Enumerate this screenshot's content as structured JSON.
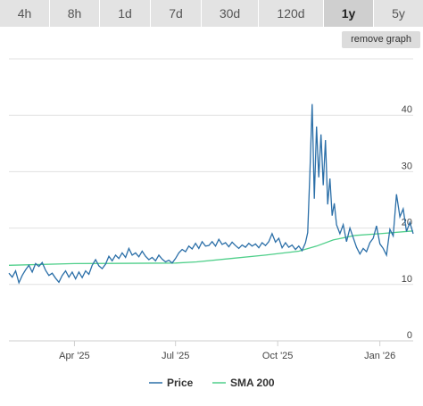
{
  "range_tabs": [
    {
      "label": "4h",
      "active": false
    },
    {
      "label": "8h",
      "active": false
    },
    {
      "label": "1d",
      "active": false
    },
    {
      "label": "7d",
      "active": false
    },
    {
      "label": "30d",
      "active": false
    },
    {
      "label": "120d",
      "active": false
    },
    {
      "label": "1y",
      "active": true
    },
    {
      "label": "5y",
      "active": false
    }
  ],
  "remove_graph_label": "remove graph",
  "colors": {
    "price": "#2b6fa8",
    "sma": "#4fcf8a",
    "grid": "#e1e1e1"
  },
  "chart_data": {
    "type": "line",
    "x_start": "2025-02-01",
    "x_end": "2026-01-31",
    "xticks": [
      {
        "date": "2025-04-01",
        "label": "Apr '25"
      },
      {
        "date": "2025-07-01",
        "label": "Jul '25"
      },
      {
        "date": "2025-10-01",
        "label": "Oct '25"
      },
      {
        "date": "2026-01-01",
        "label": "Jan '26"
      }
    ],
    "ylim": [
      0,
      50
    ],
    "yticks": [
      0,
      10,
      20,
      30,
      40
    ],
    "grid": true,
    "legend_position": "bottom",
    "series": [
      {
        "name": "Price",
        "color": "#2b6fa8",
        "points": [
          [
            "2025-02-01",
            12.0
          ],
          [
            "2025-02-04",
            11.3
          ],
          [
            "2025-02-07",
            12.4
          ],
          [
            "2025-02-10",
            10.3
          ],
          [
            "2025-02-13",
            11.6
          ],
          [
            "2025-02-16",
            12.6
          ],
          [
            "2025-02-19",
            13.4
          ],
          [
            "2025-02-22",
            12.2
          ],
          [
            "2025-02-25",
            13.7
          ],
          [
            "2025-02-28",
            13.2
          ],
          [
            "2025-03-03",
            13.9
          ],
          [
            "2025-03-06",
            12.5
          ],
          [
            "2025-03-09",
            11.6
          ],
          [
            "2025-03-12",
            12.0
          ],
          [
            "2025-03-15",
            11.1
          ],
          [
            "2025-03-18",
            10.4
          ],
          [
            "2025-03-21",
            11.6
          ],
          [
            "2025-03-24",
            12.4
          ],
          [
            "2025-03-27",
            11.3
          ],
          [
            "2025-03-30",
            12.2
          ],
          [
            "2025-04-02",
            11.0
          ],
          [
            "2025-04-05",
            12.2
          ],
          [
            "2025-04-08",
            11.2
          ],
          [
            "2025-04-11",
            12.4
          ],
          [
            "2025-04-14",
            11.8
          ],
          [
            "2025-04-17",
            13.4
          ],
          [
            "2025-04-20",
            14.4
          ],
          [
            "2025-04-23",
            13.3
          ],
          [
            "2025-04-26",
            12.8
          ],
          [
            "2025-04-29",
            13.6
          ],
          [
            "2025-05-02",
            15.0
          ],
          [
            "2025-05-05",
            14.2
          ],
          [
            "2025-05-08",
            15.2
          ],
          [
            "2025-05-11",
            14.6
          ],
          [
            "2025-05-14",
            15.6
          ],
          [
            "2025-05-17",
            14.8
          ],
          [
            "2025-05-20",
            16.4
          ],
          [
            "2025-05-23",
            15.2
          ],
          [
            "2025-05-26",
            15.6
          ],
          [
            "2025-05-29",
            14.9
          ],
          [
            "2025-06-01",
            15.9
          ],
          [
            "2025-06-04",
            15.0
          ],
          [
            "2025-06-07",
            14.4
          ],
          [
            "2025-06-10",
            14.8
          ],
          [
            "2025-06-13",
            14.2
          ],
          [
            "2025-06-16",
            15.2
          ],
          [
            "2025-06-19",
            14.5
          ],
          [
            "2025-06-22",
            14.0
          ],
          [
            "2025-06-25",
            14.3
          ],
          [
            "2025-06-28",
            13.8
          ],
          [
            "2025-07-01",
            14.6
          ],
          [
            "2025-07-04",
            15.6
          ],
          [
            "2025-07-07",
            16.2
          ],
          [
            "2025-07-10",
            15.8
          ],
          [
            "2025-07-13",
            16.8
          ],
          [
            "2025-07-16",
            16.3
          ],
          [
            "2025-07-19",
            17.3
          ],
          [
            "2025-07-22",
            16.4
          ],
          [
            "2025-07-25",
            17.6
          ],
          [
            "2025-07-28",
            16.8
          ],
          [
            "2025-07-31",
            16.9
          ],
          [
            "2025-08-03",
            17.6
          ],
          [
            "2025-08-06",
            16.8
          ],
          [
            "2025-08-09",
            18.0
          ],
          [
            "2025-08-12",
            17.1
          ],
          [
            "2025-08-15",
            17.4
          ],
          [
            "2025-08-18",
            16.7
          ],
          [
            "2025-08-21",
            17.5
          ],
          [
            "2025-08-24",
            16.9
          ],
          [
            "2025-08-27",
            16.4
          ],
          [
            "2025-08-30",
            17.0
          ],
          [
            "2025-09-02",
            16.6
          ],
          [
            "2025-09-05",
            17.3
          ],
          [
            "2025-09-08",
            16.8
          ],
          [
            "2025-09-11",
            17.2
          ],
          [
            "2025-09-14",
            16.5
          ],
          [
            "2025-09-17",
            17.4
          ],
          [
            "2025-09-20",
            16.9
          ],
          [
            "2025-09-23",
            17.6
          ],
          [
            "2025-09-26",
            19.0
          ],
          [
            "2025-09-29",
            17.5
          ],
          [
            "2025-10-02",
            18.2
          ],
          [
            "2025-10-05",
            16.5
          ],
          [
            "2025-10-08",
            17.4
          ],
          [
            "2025-10-11",
            16.6
          ],
          [
            "2025-10-14",
            17.0
          ],
          [
            "2025-10-17",
            16.2
          ],
          [
            "2025-10-20",
            16.8
          ],
          [
            "2025-10-23",
            16.0
          ],
          [
            "2025-10-26",
            17.4
          ],
          [
            "2025-10-28",
            19.2
          ],
          [
            "2025-10-30",
            30.0
          ],
          [
            "2025-11-01",
            42.0
          ],
          [
            "2025-11-03",
            25.2
          ],
          [
            "2025-11-05",
            38.0
          ],
          [
            "2025-11-07",
            29.0
          ],
          [
            "2025-11-09",
            36.6
          ],
          [
            "2025-11-11",
            27.6
          ],
          [
            "2025-11-13",
            35.6
          ],
          [
            "2025-11-15",
            24.2
          ],
          [
            "2025-11-17",
            28.8
          ],
          [
            "2025-11-19",
            22.2
          ],
          [
            "2025-11-21",
            24.4
          ],
          [
            "2025-11-23",
            20.6
          ],
          [
            "2025-11-26",
            19.0
          ],
          [
            "2025-11-29",
            20.6
          ],
          [
            "2025-12-02",
            17.6
          ],
          [
            "2025-12-05",
            20.0
          ],
          [
            "2025-12-08",
            18.3
          ],
          [
            "2025-12-11",
            16.6
          ],
          [
            "2025-12-14",
            15.4
          ],
          [
            "2025-12-17",
            16.4
          ],
          [
            "2025-12-20",
            15.8
          ],
          [
            "2025-12-23",
            17.4
          ],
          [
            "2025-12-26",
            18.2
          ],
          [
            "2025-12-29",
            20.4
          ],
          [
            "2026-01-01",
            17.2
          ],
          [
            "2026-01-04",
            16.4
          ],
          [
            "2026-01-07",
            15.2
          ],
          [
            "2026-01-10",
            19.8
          ],
          [
            "2026-01-13",
            18.6
          ],
          [
            "2026-01-16",
            26.0
          ],
          [
            "2026-01-19",
            22.0
          ],
          [
            "2026-01-22",
            23.4
          ],
          [
            "2026-01-25",
            19.4
          ],
          [
            "2026-01-28",
            21.0
          ],
          [
            "2026-01-31",
            19.0
          ]
        ]
      },
      {
        "name": "SMA 200",
        "color": "#4fcf8a",
        "points": [
          [
            "2025-02-01",
            13.4
          ],
          [
            "2025-04-01",
            13.7
          ],
          [
            "2025-07-01",
            13.8
          ],
          [
            "2025-07-20",
            14.0
          ],
          [
            "2025-08-20",
            14.6
          ],
          [
            "2025-09-20",
            15.2
          ],
          [
            "2025-10-20",
            15.9
          ],
          [
            "2025-11-05",
            16.8
          ],
          [
            "2025-11-20",
            17.9
          ],
          [
            "2025-12-10",
            18.7
          ],
          [
            "2026-01-01",
            19.0
          ],
          [
            "2026-01-31",
            19.5
          ]
        ]
      }
    ]
  }
}
